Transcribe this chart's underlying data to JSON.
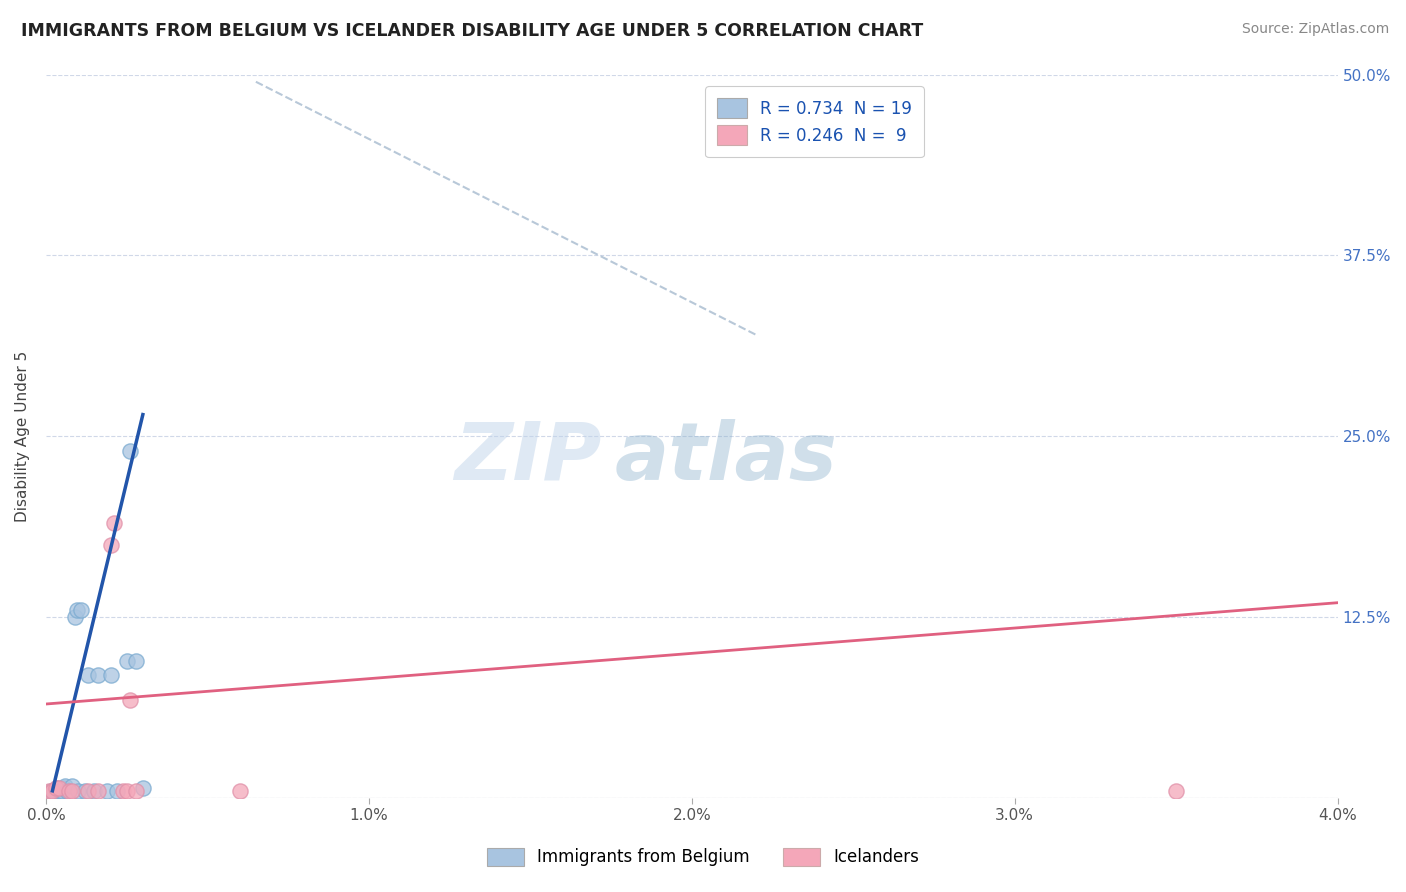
{
  "title": "IMMIGRANTS FROM BELGIUM VS ICELANDER DISABILITY AGE UNDER 5 CORRELATION CHART",
  "source": "Source: ZipAtlas.com",
  "ylabel": "Disability Age Under 5",
  "xlim": [
    0.0,
    0.04
  ],
  "ylim": [
    0.0,
    0.5
  ],
  "legend_labels": [
    "Immigrants from Belgium",
    "Icelanders"
  ],
  "R_belgium": 0.734,
  "N_belgium": 19,
  "R_iceland": 0.246,
  "N_iceland": 9,
  "belgium_color": "#a8c4e0",
  "iceland_color": "#f4a7b9",
  "belgium_line_color": "#2255aa",
  "iceland_line_color": "#e06080",
  "trend_line_color": "#b8c8d8",
  "background_color": "#ffffff",
  "grid_color": "#d0d8e8",
  "title_color": "#222222",
  "watermark_zip": "ZIP",
  "watermark_atlas": "atlas",
  "belgium_x": [
    0.00015,
    0.0002,
    0.00025,
    0.0003,
    0.00035,
    0.0004,
    0.00045,
    0.0005,
    0.00055,
    0.0006,
    0.00065,
    0.0008,
    0.0009,
    0.00095,
    0.001,
    0.0011,
    0.0012,
    0.0013,
    0.0015,
    0.0016,
    0.0019,
    0.002,
    0.0022,
    0.0025,
    0.0026,
    0.0028,
    0.003
  ],
  "belgium_y": [
    0.005,
    0.005,
    0.005,
    0.005,
    0.007,
    0.005,
    0.005,
    0.005,
    0.007,
    0.008,
    0.005,
    0.008,
    0.125,
    0.13,
    0.005,
    0.13,
    0.005,
    0.085,
    0.005,
    0.085,
    0.005,
    0.085,
    0.005,
    0.095,
    0.24,
    0.095,
    0.007
  ],
  "iceland_x": [
    0.0001,
    0.0002,
    0.0003,
    0.0004,
    0.0007,
    0.0008,
    0.0013,
    0.0016,
    0.002,
    0.0021,
    0.0024,
    0.0025,
    0.0026,
    0.0028,
    0.006,
    0.035
  ],
  "iceland_y": [
    0.005,
    0.005,
    0.007,
    0.007,
    0.005,
    0.005,
    0.005,
    0.005,
    0.175,
    0.19,
    0.005,
    0.005,
    0.068,
    0.005,
    0.005,
    0.005
  ],
  "belgium_line_x": [
    0.0002,
    0.003
  ],
  "belgium_line_y": [
    0.005,
    0.265
  ],
  "iceland_line_x": [
    0.0,
    0.04
  ],
  "iceland_line_y": [
    0.065,
    0.135
  ],
  "diag_line_x": [
    0.0065,
    0.022
  ],
  "diag_line_y": [
    0.495,
    0.32
  ]
}
